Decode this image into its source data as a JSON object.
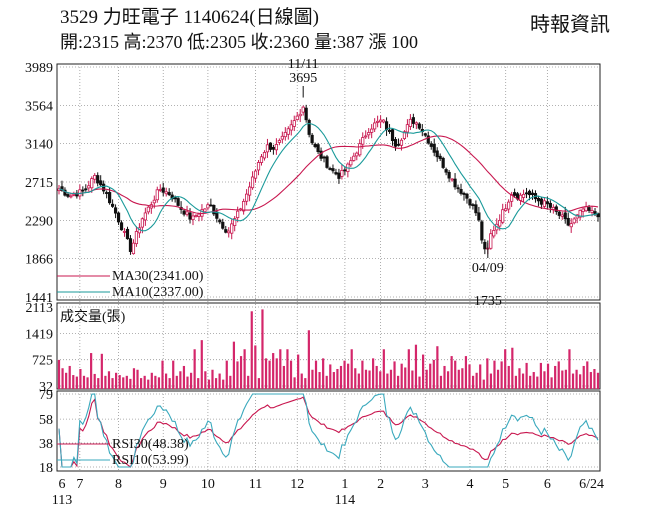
{
  "header": {
    "title": "3529  力旺電子 1140624(日線圖)",
    "ohlc": "開:2315 高:2370 低:2305 收:2360 量:387 漲 100",
    "source": "時報資訊"
  },
  "colors": {
    "up": "#c8174f",
    "down": "#111111",
    "ma30": "#c8174f",
    "ma10": "#1a9a9a",
    "rsi30": "#c8174f",
    "rsi10": "#3aa9bd",
    "volume": "#d4266a"
  },
  "chart_data": {
    "type": "candlestick",
    "price": {
      "yticks": [
        3989,
        3564,
        3140,
        2715,
        2290,
        1866,
        1441
      ],
      "ylim": [
        1441,
        3989
      ],
      "annotations": [
        {
          "date_label": "11/11",
          "value": 3695
        },
        {
          "date_label": "04/09",
          "value": 1735
        }
      ],
      "legend": [
        {
          "key": "ma30",
          "text": "MA30(2341.00)"
        },
        {
          "key": "ma10",
          "text": "MA10(2337.00)"
        }
      ],
      "anchors": [
        [
          0,
          2640
        ],
        [
          3,
          2560
        ],
        [
          7,
          2620
        ],
        [
          10,
          2780
        ],
        [
          13,
          2600
        ],
        [
          16,
          2350
        ],
        [
          18,
          2160
        ],
        [
          20,
          1960
        ],
        [
          23,
          2300
        ],
        [
          26,
          2500
        ],
        [
          28,
          2640
        ],
        [
          31,
          2580
        ],
        [
          34,
          2420
        ],
        [
          37,
          2300
        ],
        [
          39,
          2380
        ],
        [
          42,
          2460
        ],
        [
          45,
          2260
        ],
        [
          47,
          2160
        ],
        [
          50,
          2380
        ],
        [
          52,
          2560
        ],
        [
          54,
          2760
        ],
        [
          56,
          2990
        ],
        [
          58,
          3110
        ],
        [
          60,
          3090
        ],
        [
          62,
          3180
        ],
        [
          64,
          3290
        ],
        [
          66,
          3420
        ],
        [
          68,
          3560
        ],
        [
          70,
          3190
        ],
        [
          72,
          3040
        ],
        [
          74,
          2940
        ],
        [
          76,
          2840
        ],
        [
          78,
          2780
        ],
        [
          80,
          2860
        ],
        [
          82,
          3000
        ],
        [
          84,
          3140
        ],
        [
          86,
          3290
        ],
        [
          88,
          3360
        ],
        [
          90,
          3400
        ],
        [
          92,
          3250
        ],
        [
          94,
          3120
        ],
        [
          96,
          3260
        ],
        [
          98,
          3400
        ],
        [
          100,
          3360
        ],
        [
          102,
          3230
        ],
        [
          104,
          3090
        ],
        [
          106,
          2960
        ],
        [
          108,
          2830
        ],
        [
          110,
          2700
        ],
        [
          112,
          2610
        ],
        [
          114,
          2520
        ],
        [
          116,
          2380
        ],
        [
          117,
          2260
        ],
        [
          118,
          2000
        ],
        [
          119,
          1890
        ],
        [
          120,
          2120
        ],
        [
          122,
          2270
        ],
        [
          124,
          2420
        ],
        [
          126,
          2600
        ],
        [
          128,
          2550
        ],
        [
          130,
          2600
        ],
        [
          132,
          2540
        ],
        [
          134,
          2500
        ],
        [
          136,
          2460
        ],
        [
          138,
          2390
        ],
        [
          140,
          2320
        ],
        [
          142,
          2230
        ],
        [
          144,
          2320
        ],
        [
          146,
          2420
        ],
        [
          148,
          2380
        ],
        [
          150,
          2360
        ]
      ]
    },
    "volume": {
      "label": "成交量(張)",
      "yticks": [
        2113,
        1419,
        725,
        32
      ],
      "ylim": [
        32,
        2113
      ],
      "bars": [
        720,
        500,
        380,
        560,
        320,
        280,
        480,
        300,
        260,
        900,
        350,
        240,
        880,
        300,
        420,
        240,
        380,
        320,
        260,
        300,
        220,
        500,
        460,
        240,
        300,
        200,
        380,
        300,
        260,
        700,
        360,
        240,
        700,
        300,
        420,
        560,
        280,
        380,
        1000,
        240,
        1240,
        420,
        200,
        460,
        240,
        360,
        200,
        700,
        300,
        1200,
        680,
        820,
        1000,
        300,
        2000,
        1100,
        240,
        2050,
        760,
        700,
        900,
        760,
        1000,
        560,
        1000,
        700,
        260,
        860,
        360,
        240,
        1500,
        460,
        700,
        400,
        760,
        300,
        600,
        400,
        480,
        560,
        700,
        620,
        1000,
        500,
        360,
        700,
        460,
        440,
        760,
        560,
        420,
        1000,
        360,
        460,
        680,
        300,
        620,
        520,
        1000,
        440,
        1120,
        280,
        860,
        460,
        620,
        720,
        1080,
        300,
        560,
        420,
        820,
        700,
        460,
        500,
        820,
        600,
        300,
        380,
        600,
        200,
        760,
        360,
        700,
        460,
        680,
        1000,
        560,
        1040,
        300,
        500,
        360,
        640,
        300,
        400,
        280,
        640,
        420,
        620,
        260,
        560,
        680,
        440,
        460,
        1000,
        360,
        460,
        340,
        560,
        680,
        400,
        480,
        380
      ]
    },
    "rsi": {
      "yticks": [
        79,
        58,
        38,
        18
      ],
      "ylim": [
        18,
        79
      ],
      "legend": [
        {
          "key": "rsi30",
          "text": "RSI30(48.38)"
        },
        {
          "key": "rsi10",
          "text": "RSI10(53.99)"
        }
      ]
    },
    "xaxis": {
      "labels": [
        "6",
        "7",
        "8",
        "9",
        "10",
        "11",
        "12",
        "1",
        "2",
        "3",
        "4",
        "5",
        "6",
        "6/24"
      ],
      "positions": [
        1,
        7,
        20,
        35,
        50,
        66,
        80,
        96,
        108,
        123,
        138,
        150,
        164,
        180
      ],
      "years": [
        {
          "label": "113",
          "at": 1
        },
        {
          "label": "114",
          "at": 96
        }
      ]
    }
  }
}
